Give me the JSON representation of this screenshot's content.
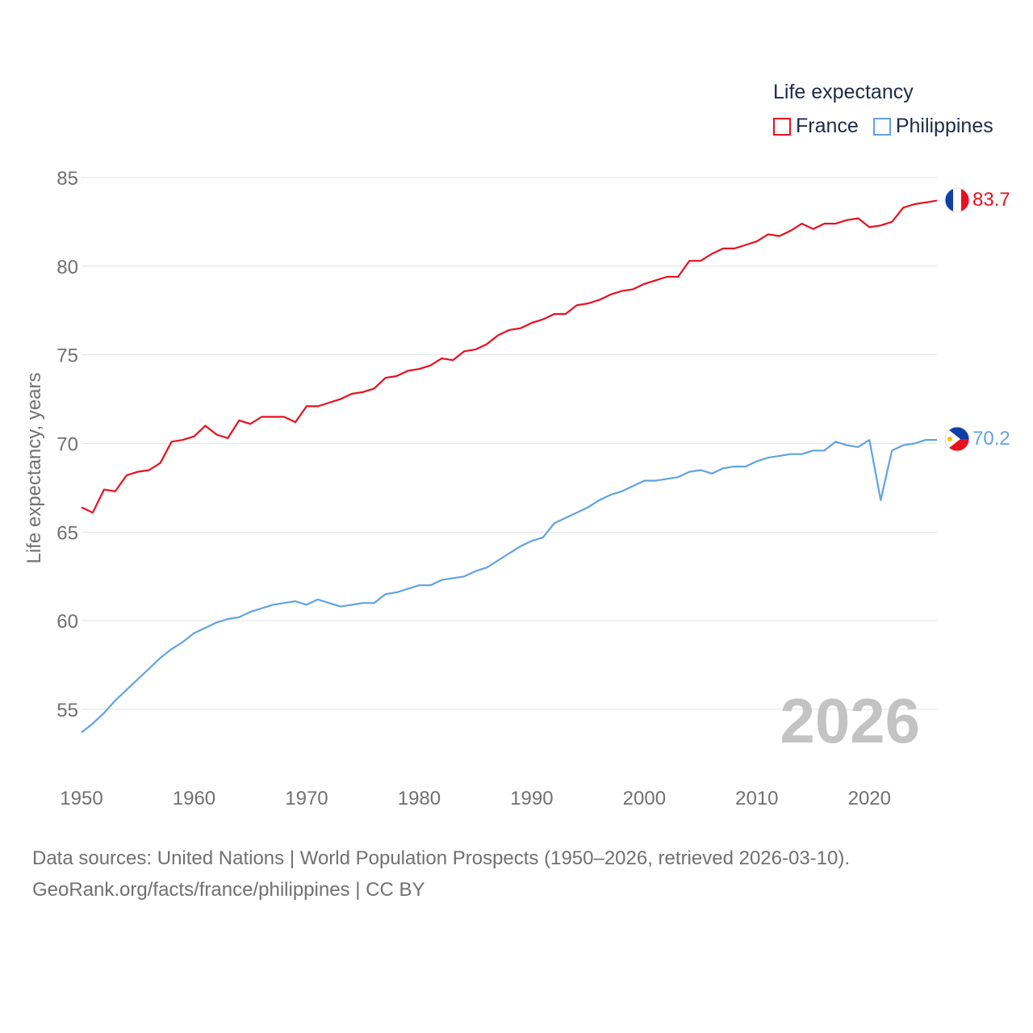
{
  "colors": {
    "france": "#e8101f",
    "philippines": "#62a2e3",
    "grid": "#e3e3e3",
    "tick": "#707070",
    "year_stamp": "#c3c3c3"
  },
  "legend": {
    "title": "Life expectancy",
    "items": [
      {
        "label": "France",
        "color": "#e8101f"
      },
      {
        "label": "Philippines",
        "color": "#62a2e3"
      }
    ]
  },
  "year_stamp": "2026",
  "footer": {
    "line1": "Data sources: United Nations | World Population Prospects (1950–2026, retrieved 2026-03-10).",
    "line2": "GeoRank.org/facts/france/philippines | CC BY"
  },
  "chart_data": {
    "type": "line",
    "title": "Life expectancy",
    "xlabel": "",
    "ylabel": "Life expectancy, years",
    "xlim": [
      1950,
      2026
    ],
    "ylim": [
      52,
      87
    ],
    "x_ticks": [
      1950,
      1960,
      1970,
      1980,
      1990,
      2000,
      2010,
      2020
    ],
    "y_ticks": [
      55,
      60,
      65,
      70,
      75,
      80,
      85
    ],
    "grid": true,
    "legend_position": "top-right",
    "x": [
      1950,
      1951,
      1952,
      1953,
      1954,
      1955,
      1956,
      1957,
      1958,
      1959,
      1960,
      1961,
      1962,
      1963,
      1964,
      1965,
      1966,
      1967,
      1968,
      1969,
      1970,
      1971,
      1972,
      1973,
      1974,
      1975,
      1976,
      1977,
      1978,
      1979,
      1980,
      1981,
      1982,
      1983,
      1984,
      1985,
      1986,
      1987,
      1988,
      1989,
      1990,
      1991,
      1992,
      1993,
      1994,
      1995,
      1996,
      1997,
      1998,
      1999,
      2000,
      2001,
      2002,
      2003,
      2004,
      2005,
      2006,
      2007,
      2008,
      2009,
      2010,
      2011,
      2012,
      2013,
      2014,
      2015,
      2016,
      2017,
      2018,
      2019,
      2020,
      2021,
      2022,
      2023,
      2024,
      2025,
      2026
    ],
    "series": [
      {
        "name": "France",
        "end_label": "83.7",
        "values": [
          66.4,
          66.1,
          67.4,
          67.3,
          68.2,
          68.4,
          68.5,
          68.9,
          70.1,
          70.2,
          70.4,
          71.0,
          70.5,
          70.3,
          71.3,
          71.1,
          71.5,
          71.5,
          71.5,
          71.2,
          72.1,
          72.1,
          72.3,
          72.5,
          72.8,
          72.9,
          73.1,
          73.7,
          73.8,
          74.1,
          74.2,
          74.4,
          74.8,
          74.7,
          75.2,
          75.3,
          75.6,
          76.1,
          76.4,
          76.5,
          76.8,
          77.0,
          77.3,
          77.3,
          77.8,
          77.9,
          78.1,
          78.4,
          78.6,
          78.7,
          79.0,
          79.2,
          79.4,
          79.4,
          80.3,
          80.3,
          80.7,
          81.0,
          81.0,
          81.2,
          81.4,
          81.8,
          81.7,
          82.0,
          82.4,
          82.1,
          82.4,
          82.4,
          82.6,
          82.7,
          82.2,
          82.3,
          82.5,
          83.3,
          83.5,
          83.6,
          83.7
        ]
      },
      {
        "name": "Philippines",
        "end_label": "70.2",
        "values": [
          53.7,
          54.2,
          54.8,
          55.5,
          56.1,
          56.7,
          57.3,
          57.9,
          58.4,
          58.8,
          59.3,
          59.6,
          59.9,
          60.1,
          60.2,
          60.5,
          60.7,
          60.9,
          61.0,
          61.1,
          60.9,
          61.2,
          61.0,
          60.8,
          60.9,
          61.0,
          61.0,
          61.5,
          61.6,
          61.8,
          62.0,
          62.0,
          62.3,
          62.4,
          62.5,
          62.8,
          63.0,
          63.4,
          63.8,
          64.2,
          64.5,
          64.7,
          65.5,
          65.8,
          66.1,
          66.4,
          66.8,
          67.1,
          67.3,
          67.6,
          67.9,
          67.9,
          68.0,
          68.1,
          68.4,
          68.5,
          68.3,
          68.6,
          68.7,
          68.7,
          69.0,
          69.2,
          69.3,
          69.4,
          69.4,
          69.6,
          69.6,
          70.1,
          69.9,
          69.8,
          70.2,
          66.8,
          69.6,
          69.9,
          70.0,
          70.2,
          70.2
        ]
      }
    ]
  }
}
